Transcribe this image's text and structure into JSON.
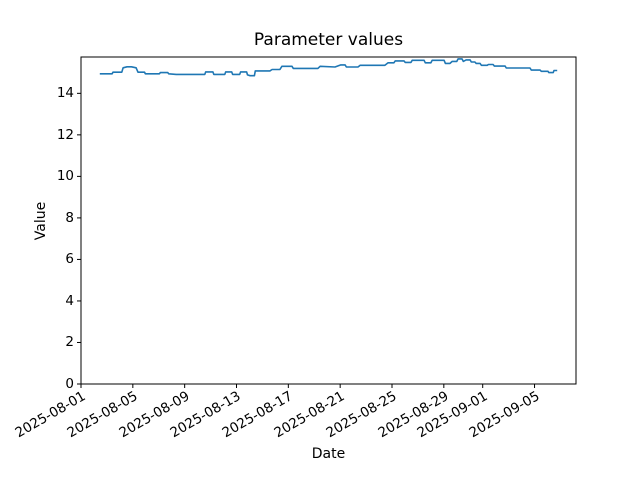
{
  "figure": {
    "title": "Parameter values",
    "xlabel": "Date",
    "ylabel": "Value"
  },
  "chart_data": {
    "type": "line",
    "title": "Parameter values",
    "xlabel": "Date",
    "ylabel": "Value",
    "grid": false,
    "legend": null,
    "series_name": "Parameter values",
    "series_color": "#1f77b4",
    "axis_color": "#000000",
    "background_color": "#ffffff",
    "x_unit": "days since 2025-08-01",
    "xlim_days": [
      0,
      38.2
    ],
    "ylim": [
      0,
      15.75
    ],
    "y_ticks": [
      0,
      2,
      4,
      6,
      8,
      10,
      12,
      14
    ],
    "x_tick_days": [
      0,
      4,
      8,
      12,
      16,
      20,
      24,
      28,
      31,
      35
    ],
    "x_tick_labels": [
      "2025-08-01",
      "2025-08-05",
      "2025-08-09",
      "2025-08-13",
      "2025-08-17",
      "2025-08-21",
      "2025-08-25",
      "2025-08-29",
      "2025-09-01",
      "2025-09-05"
    ],
    "points": [
      [
        1.45,
        14.94
      ],
      [
        2.4,
        14.94
      ],
      [
        2.47,
        15.02
      ],
      [
        3.15,
        15.02
      ],
      [
        3.25,
        15.23
      ],
      [
        3.55,
        15.28
      ],
      [
        3.9,
        15.28
      ],
      [
        4.25,
        15.23
      ],
      [
        4.4,
        15.02
      ],
      [
        4.9,
        15.02
      ],
      [
        4.97,
        14.94
      ],
      [
        6.05,
        14.94
      ],
      [
        6.12,
        15.0
      ],
      [
        6.7,
        15.0
      ],
      [
        6.77,
        14.94
      ],
      [
        7.35,
        14.91
      ],
      [
        9.55,
        14.91
      ],
      [
        9.62,
        15.03
      ],
      [
        10.18,
        15.03
      ],
      [
        10.25,
        14.91
      ],
      [
        11.1,
        14.91
      ],
      [
        11.17,
        15.03
      ],
      [
        11.63,
        15.03
      ],
      [
        11.7,
        14.91
      ],
      [
        12.25,
        14.91
      ],
      [
        12.32,
        15.03
      ],
      [
        12.78,
        15.03
      ],
      [
        12.85,
        14.89
      ],
      [
        13.05,
        14.85
      ],
      [
        13.38,
        14.85
      ],
      [
        13.45,
        15.08
      ],
      [
        14.58,
        15.08
      ],
      [
        14.75,
        15.15
      ],
      [
        15.35,
        15.15
      ],
      [
        15.5,
        15.3
      ],
      [
        16.28,
        15.3
      ],
      [
        16.38,
        15.2
      ],
      [
        18.28,
        15.2
      ],
      [
        18.45,
        15.3
      ],
      [
        19.6,
        15.27
      ],
      [
        20.05,
        15.37
      ],
      [
        20.38,
        15.37
      ],
      [
        20.48,
        15.27
      ],
      [
        21.38,
        15.27
      ],
      [
        21.55,
        15.35
      ],
      [
        23.45,
        15.35
      ],
      [
        23.7,
        15.47
      ],
      [
        24.15,
        15.47
      ],
      [
        24.25,
        15.56
      ],
      [
        24.93,
        15.56
      ],
      [
        25.02,
        15.49
      ],
      [
        25.47,
        15.49
      ],
      [
        25.56,
        15.59
      ],
      [
        26.48,
        15.59
      ],
      [
        26.57,
        15.47
      ],
      [
        27.0,
        15.47
      ],
      [
        27.1,
        15.59
      ],
      [
        28.02,
        15.59
      ],
      [
        28.12,
        15.44
      ],
      [
        28.48,
        15.44
      ],
      [
        28.65,
        15.54
      ],
      [
        29.0,
        15.54
      ],
      [
        29.1,
        15.66
      ],
      [
        29.4,
        15.66
      ],
      [
        29.5,
        15.54
      ],
      [
        29.72,
        15.61
      ],
      [
        30.03,
        15.61
      ],
      [
        30.12,
        15.51
      ],
      [
        30.4,
        15.51
      ],
      [
        30.5,
        15.44
      ],
      [
        30.8,
        15.44
      ],
      [
        30.9,
        15.35
      ],
      [
        31.35,
        15.35
      ],
      [
        31.44,
        15.39
      ],
      [
        31.8,
        15.39
      ],
      [
        31.9,
        15.31
      ],
      [
        32.73,
        15.31
      ],
      [
        32.82,
        15.22
      ],
      [
        34.65,
        15.22
      ],
      [
        34.75,
        15.12
      ],
      [
        35.43,
        15.12
      ],
      [
        35.52,
        15.06
      ],
      [
        36.04,
        15.06
      ],
      [
        36.1,
        15.0
      ],
      [
        36.44,
        15.0
      ],
      [
        36.5,
        15.1
      ],
      [
        36.75,
        15.1
      ]
    ]
  }
}
